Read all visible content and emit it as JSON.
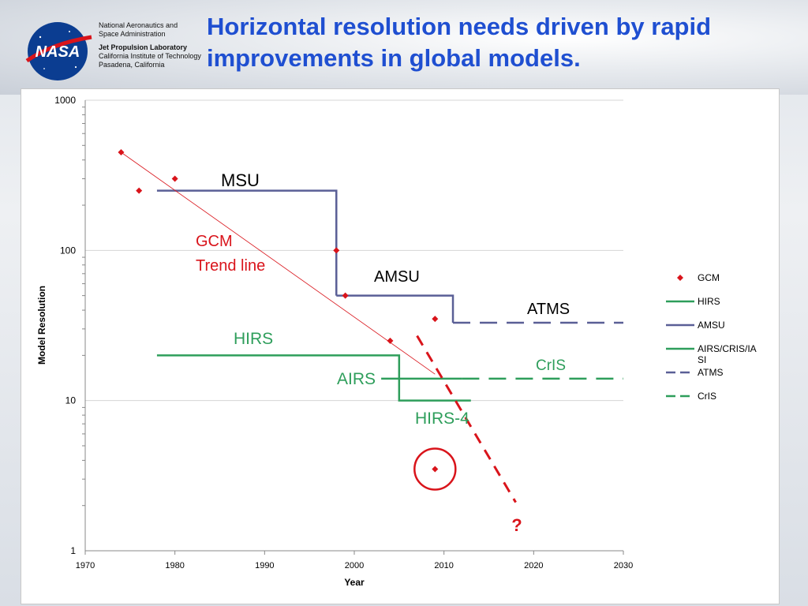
{
  "header": {
    "agency_line1": "National Aeronautics and",
    "agency_line2": "Space Administration",
    "lab_name": "Jet Propulsion Laboratory",
    "lab_line2": "California Institute of Technology",
    "lab_line3": "Pasadena, California",
    "logo_text": "NASA",
    "title_line1": "Horizontal resolution needs driven by rapid",
    "title_line2": "improvements in global models."
  },
  "colors": {
    "gcm": "#d9141b",
    "hirs": "#2e9e5b",
    "amsu": "#5a5f96",
    "title": "#1f4fd1"
  },
  "chart_data": {
    "type": "scatter",
    "xlabel": "Year",
    "ylabel": "Model Resolution",
    "xlim": [
      1970,
      2030
    ],
    "ylim": [
      1,
      1000
    ],
    "yscale": "log",
    "x_ticks": [
      "1970",
      "1980",
      "1990",
      "2000",
      "2010",
      "2020",
      "2030"
    ],
    "y_ticks": [
      "1",
      "10",
      "100",
      "1000"
    ],
    "grid": "horizontal",
    "legend_position": "right",
    "legend": [
      "GCM",
      "HIRS",
      "AMSU",
      "AIRS/CRIS/IASI",
      "ATMS",
      "CrIS"
    ],
    "gcm_points": [
      {
        "x": 1974,
        "y": 450
      },
      {
        "x": 1976,
        "y": 250
      },
      {
        "x": 1980,
        "y": 300
      },
      {
        "x": 1998,
        "y": 100
      },
      {
        "x": 1999,
        "y": 50
      },
      {
        "x": 2004,
        "y": 25
      },
      {
        "x": 2009,
        "y": 35
      },
      {
        "x": 2009,
        "y": 3.5
      }
    ],
    "instrument_lines": [
      {
        "name": "MSU",
        "points": [
          [
            1978,
            250
          ],
          [
            1998,
            250
          ],
          [
            1998,
            50
          ]
        ]
      },
      {
        "name": "AMSU",
        "points": [
          [
            1998,
            50
          ],
          [
            2011,
            50
          ],
          [
            2011,
            33
          ]
        ]
      },
      {
        "name": "ATMS",
        "points": [
          [
            2011,
            33
          ],
          [
            2030,
            33
          ]
        ]
      },
      {
        "name": "HIRS",
        "points": [
          [
            1978,
            20
          ],
          [
            2005,
            20
          ],
          [
            2005,
            10
          ],
          [
            2013,
            10
          ]
        ]
      },
      {
        "name": "AIRS",
        "points": [
          [
            2003,
            14
          ],
          [
            2012,
            14
          ]
        ]
      },
      {
        "name": "CrIS",
        "points": [
          [
            2012,
            14
          ],
          [
            2030,
            14
          ]
        ]
      }
    ],
    "trend_line": {
      "name": "GCM Trend line",
      "points": [
        [
          1974,
          450
        ],
        [
          2009,
          15
        ]
      ]
    },
    "projection_line": {
      "points": [
        [
          2007,
          27
        ],
        [
          2018,
          2.1
        ]
      ]
    },
    "annotations": {
      "msu": "MSU",
      "gcm_trend_1": "GCM",
      "gcm_trend_2": "Trend line",
      "amsu": "AMSU",
      "atms": "ATMS",
      "hirs": "HIRS",
      "cris": "CrIS",
      "airs": "AIRS",
      "hirs4": "HIRS-4",
      "question": "?"
    },
    "highlight": {
      "x": 2009,
      "y": 3.5
    }
  }
}
